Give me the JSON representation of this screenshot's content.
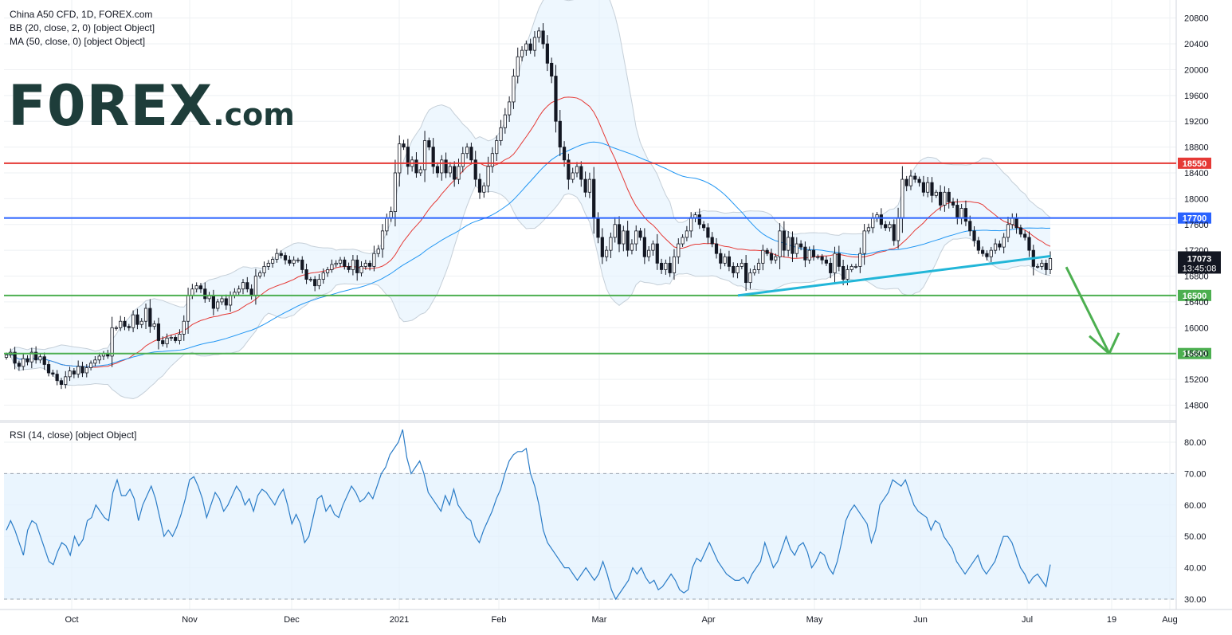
{
  "legend": {
    "symbol_line": "China A50 CFD, 1D, FOREX.com",
    "bb_line": "BB (20, close, 2, 0) [object Object]",
    "ma_line": "MA (50, close, 0) [object Object]",
    "rsi_line": "RSI (14, close) [object Object]"
  },
  "logo": {
    "text_big": "F0REX",
    "text_small": ".com"
  },
  "price_tag": {
    "value": "17073",
    "countdown": "13:45:08"
  },
  "colors": {
    "red_level": "#e53935",
    "blue_level": "#2962ff",
    "green_level": "#4caf50",
    "trendline": "#22b6d8",
    "ma50": "#2196f3",
    "bb_basis": "#e53935",
    "bb_band": "#c5cfd8",
    "bb_fill": "#e3f2fd",
    "rsi_line": "#2a7cc7",
    "rsi_fill": "#e3f2fd",
    "candle": "#131722",
    "arrow": "#4caf50",
    "price_tag_bg": "#131722"
  },
  "chart_data": {
    "type": "candlestick",
    "title": "China A50 CFD, 1D, FOREX.com",
    "price_axis": {
      "range": [
        14600,
        20900
      ],
      "ticks": [
        "14800",
        "15200",
        "15600",
        "16000",
        "16400",
        "16800",
        "17200",
        "17600",
        "18000",
        "18400",
        "18800",
        "19200",
        "19600",
        "20000",
        "20400",
        "20800"
      ]
    },
    "time_axis": {
      "labels": [
        "Oct",
        "Nov",
        "Dec",
        "2021",
        "Feb",
        "Mar",
        "Apr",
        "May",
        "Jun",
        "Jul",
        "19",
        "Aug"
      ]
    },
    "horizontal_levels": [
      {
        "value": 18550,
        "label": "18550",
        "color": "#e53935"
      },
      {
        "value": 17700,
        "label": "17700",
        "color": "#2962ff"
      },
      {
        "value": 16500,
        "label": "16500",
        "color": "#4caf50"
      },
      {
        "value": 15600,
        "label": "15600",
        "color": "#4caf50"
      }
    ],
    "trendline": {
      "from": {
        "date": "Apr 15",
        "price": 16500
      },
      "to": {
        "date": "Jul 7",
        "price": 17110
      }
    },
    "arrow": {
      "from": {
        "date": "Jul 10",
        "price": 16940
      },
      "to": {
        "date": "Jul 19",
        "price": 15600
      }
    },
    "last_price": 17073,
    "candles_close": [
      15580,
      15620,
      15450,
      15400,
      15520,
      15470,
      15620,
      15500,
      15550,
      15430,
      15300,
      15280,
      15180,
      15120,
      15240,
      15330,
      15280,
      15400,
      15300,
      15380,
      15450,
      15500,
      15560,
      15600,
      15560,
      16000,
      16000,
      16100,
      16020,
      16000,
      16200,
      16050,
      16100,
      16300,
      16020,
      16060,
      15800,
      15750,
      15840,
      15850,
      15800,
      15900,
      16100,
      16500,
      16600,
      16650,
      16600,
      16450,
      16500,
      16300,
      16400,
      16450,
      16350,
      16500,
      16550,
      16600,
      16700,
      16600,
      16500,
      16800,
      16850,
      16950,
      17000,
      17060,
      17150,
      17120,
      17050,
      17000,
      17050,
      17050,
      16900,
      16750,
      16750,
      16650,
      16750,
      16850,
      16900,
      16980,
      17000,
      17050,
      16950,
      16900,
      17050,
      16850,
      16950,
      17000,
      16950,
      17150,
      17220,
      17500,
      17700,
      17800,
      18400,
      18850,
      18800,
      18500,
      18600,
      18400,
      18450,
      18900,
      18800,
      18500,
      18400,
      18600,
      18400,
      18500,
      18300,
      18500,
      18700,
      18800,
      18600,
      18300,
      18100,
      18200,
      18500,
      18700,
      18900,
      19100,
      19300,
      19500,
      19900,
      20200,
      20300,
      20400,
      20300,
      20500,
      20600,
      20400,
      20100,
      19900,
      19200,
      18800,
      18600,
      18300,
      18400,
      18500,
      18300,
      18100,
      18300,
      17700,
      17400,
      17100,
      17200,
      17400,
      17600,
      17300,
      17500,
      17200,
      17300,
      17500,
      17400,
      17100,
      17200,
      17300,
      17000,
      16900,
      17000,
      16850,
      17100,
      17300,
      17400,
      17500,
      17700,
      17750,
      17600,
      17550,
      17400,
      17300,
      17150,
      17000,
      17100,
      16950,
      16850,
      16950,
      17000,
      16700,
      16850,
      16900,
      17000,
      17200,
      17150,
      17050,
      17100,
      17500,
      17200,
      17400,
      17150,
      17300,
      17250,
      17050,
      17200,
      17100,
      17100,
      17050,
      17000,
      16850,
      17150,
      16950,
      16750,
      16900,
      16950,
      16950,
      17150,
      17500,
      17550,
      17700,
      17750,
      17600,
      17550,
      17600,
      17350,
      17700,
      18300,
      18200,
      18350,
      18300,
      18250,
      18100,
      18250,
      18050,
      18100,
      17900,
      18100,
      17950,
      17900,
      17700,
      17850,
      17650,
      17500,
      17350,
      17200,
      17150,
      17100,
      17200,
      17300,
      17250,
      17400,
      17600,
      17700,
      17550,
      17450,
      17400,
      17200,
      16950,
      16950,
      17000,
      16900,
      17073
    ],
    "bb_basis": [],
    "ma50": [],
    "rsi": {
      "ylim": [
        28,
        84
      ],
      "ticks": [
        "30.00",
        "40.00",
        "50.00",
        "60.00",
        "70.00",
        "80.00"
      ],
      "bands": [
        30,
        70
      ],
      "values": [
        52,
        55,
        52,
        48,
        44,
        52,
        55,
        54,
        50,
        46,
        42,
        41,
        45,
        48,
        47,
        44,
        50,
        47,
        49,
        55,
        56,
        60,
        58,
        56,
        55,
        64,
        68,
        63,
        63,
        65,
        62,
        55,
        60,
        63,
        66,
        62,
        56,
        50,
        52,
        50,
        53,
        57,
        62,
        68,
        69,
        66,
        62,
        56,
        60,
        64,
        62,
        58,
        60,
        63,
        66,
        64,
        60,
        62,
        58,
        63,
        65,
        64,
        62,
        60,
        63,
        65,
        60,
        54,
        57,
        54,
        48,
        50,
        56,
        62,
        63,
        58,
        60,
        57,
        56,
        60,
        63,
        66,
        64,
        61,
        62,
        64,
        62,
        66,
        70,
        72,
        76,
        78,
        80,
        84,
        75,
        70,
        72,
        74,
        70,
        64,
        62,
        60,
        58,
        63,
        60,
        65,
        60,
        58,
        56,
        55,
        50,
        48,
        52,
        55,
        58,
        62,
        65,
        70,
        74,
        76,
        77,
        77,
        78,
        70,
        66,
        60,
        52,
        48,
        46,
        44,
        42,
        40,
        40,
        38,
        36,
        38,
        40,
        38,
        36,
        38,
        42,
        38,
        33,
        30,
        32,
        34,
        36,
        40,
        38,
        40,
        37,
        35,
        36,
        33,
        34,
        36,
        38,
        36,
        33,
        32,
        33,
        40,
        43,
        42,
        45,
        48,
        45,
        42,
        40,
        38,
        37,
        36,
        36,
        37,
        35,
        38,
        40,
        42,
        48,
        44,
        40,
        42,
        46,
        50,
        46,
        44,
        47,
        48,
        45,
        40,
        42,
        45,
        44,
        40,
        38,
        42,
        48,
        55,
        58,
        60,
        58,
        56,
        54,
        48,
        52,
        60,
        62,
        64,
        68,
        67,
        66,
        68,
        64,
        60,
        58,
        57,
        56,
        52,
        55,
        54,
        50,
        48,
        46,
        42,
        40,
        38,
        40,
        42,
        44,
        40,
        38,
        40,
        42,
        46,
        50,
        50,
        48,
        44,
        40,
        38,
        35,
        37,
        38,
        36,
        34,
        41
      ]
    }
  }
}
